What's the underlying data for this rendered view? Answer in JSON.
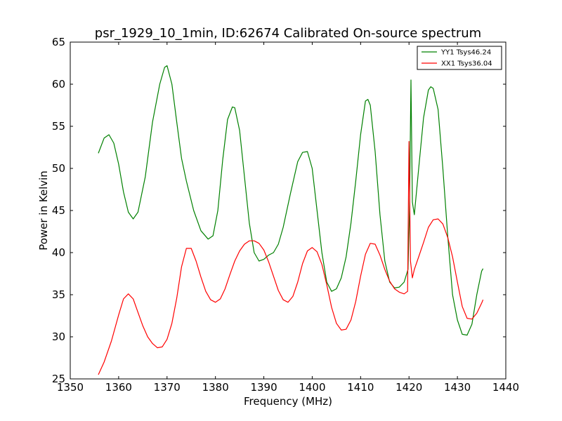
{
  "chart_data": {
    "type": "line",
    "title": "psr_1929_10_1min, ID:62674 Calibrated On-source spectrum",
    "xlabel": "Frequency (MHz)",
    "ylabel": "Power in Kelvin",
    "xlim": [
      1350,
      1440
    ],
    "ylim": [
      25,
      65
    ],
    "xticks": [
      1350,
      1360,
      1370,
      1380,
      1390,
      1400,
      1410,
      1420,
      1430,
      1440
    ],
    "yticks": [
      25,
      30,
      35,
      40,
      45,
      50,
      55,
      60,
      65
    ],
    "grid": false,
    "legend_position": "top-right",
    "series": [
      {
        "name": "YY1 Tsys46.24",
        "color": "#008000",
        "x": [
          1355.8,
          1357.0,
          1358.0,
          1359.0,
          1360.0,
          1361.0,
          1362.0,
          1363.0,
          1364.0,
          1365.5,
          1367.0,
          1368.5,
          1369.5,
          1370.0,
          1371.0,
          1372.0,
          1373.0,
          1374.0,
          1375.5,
          1377.0,
          1378.5,
          1379.5,
          1380.5,
          1381.5,
          1382.5,
          1383.5,
          1384.0,
          1385.0,
          1386.0,
          1387.0,
          1388.0,
          1389.0,
          1390.0,
          1391.0,
          1392.0,
          1393.0,
          1394.0,
          1395.5,
          1397.0,
          1398.0,
          1399.0,
          1400.0,
          1401.0,
          1402.0,
          1403.0,
          1404.0,
          1405.0,
          1406.0,
          1407.0,
          1408.0,
          1409.0,
          1410.0,
          1411.0,
          1411.5,
          1412.0,
          1413.0,
          1414.0,
          1415.0,
          1416.0,
          1417.0,
          1418.0,
          1419.0,
          1419.8,
          1420.1,
          1420.4,
          1420.7,
          1421.1,
          1422.0,
          1423.0,
          1424.0,
          1424.5,
          1425.0,
          1426.0,
          1427.0,
          1428.0,
          1429.0,
          1430.0,
          1431.0,
          1432.0,
          1433.0,
          1434.0,
          1435.0,
          1435.3
        ],
        "y": [
          51.8,
          53.6,
          54.0,
          53.0,
          50.5,
          47.2,
          44.8,
          44.0,
          44.8,
          49.0,
          55.5,
          60.0,
          62.0,
          62.2,
          60.0,
          55.5,
          51.2,
          48.5,
          45.0,
          42.6,
          41.6,
          42.0,
          45.0,
          51.0,
          55.8,
          57.3,
          57.2,
          54.5,
          49.0,
          43.5,
          40.0,
          39.0,
          39.2,
          39.7,
          40.0,
          41.0,
          43.0,
          47.0,
          50.8,
          51.9,
          52.0,
          50.0,
          45.0,
          40.0,
          36.5,
          35.4,
          35.7,
          37.0,
          39.5,
          43.5,
          48.5,
          54.0,
          58.0,
          58.2,
          57.5,
          52.0,
          44.5,
          39.0,
          36.5,
          35.8,
          35.9,
          36.5,
          38.0,
          45.0,
          60.5,
          46.0,
          44.5,
          50.0,
          56.0,
          59.3,
          59.7,
          59.5,
          57.0,
          50.0,
          42.0,
          35.0,
          32.0,
          30.3,
          30.2,
          31.5,
          35.0,
          37.8,
          38.1
        ]
      },
      {
        "name": "XX1 Tsys36.04",
        "color": "#ff0000",
        "x": [
          1355.8,
          1357.0,
          1358.5,
          1360.0,
          1361.0,
          1362.0,
          1363.0,
          1364.0,
          1365.0,
          1366.0,
          1367.0,
          1368.0,
          1369.0,
          1370.0,
          1371.0,
          1372.0,
          1373.0,
          1374.0,
          1375.0,
          1376.0,
          1377.0,
          1378.0,
          1379.0,
          1380.0,
          1381.0,
          1382.0,
          1383.0,
          1384.0,
          1385.0,
          1386.0,
          1387.0,
          1388.0,
          1389.0,
          1390.0,
          1391.0,
          1392.0,
          1393.0,
          1394.0,
          1395.0,
          1396.0,
          1397.0,
          1398.0,
          1399.0,
          1400.0,
          1401.0,
          1402.0,
          1403.0,
          1404.0,
          1405.0,
          1406.0,
          1407.0,
          1408.0,
          1409.0,
          1410.0,
          1411.0,
          1412.0,
          1413.0,
          1414.0,
          1415.0,
          1416.0,
          1417.0,
          1418.0,
          1419.0,
          1419.7,
          1420.0,
          1420.3,
          1420.7,
          1421.1,
          1422.0,
          1423.0,
          1424.0,
          1425.0,
          1426.0,
          1427.0,
          1428.0,
          1429.0,
          1430.0,
          1431.0,
          1432.0,
          1433.0,
          1434.0,
          1435.0,
          1435.3
        ],
        "y": [
          25.5,
          27.0,
          29.5,
          32.6,
          34.5,
          35.1,
          34.5,
          32.9,
          31.3,
          30.0,
          29.2,
          28.7,
          28.8,
          29.7,
          31.6,
          34.6,
          38.3,
          40.5,
          40.5,
          39.0,
          37.1,
          35.4,
          34.4,
          34.1,
          34.5,
          35.7,
          37.4,
          39.0,
          40.2,
          41.0,
          41.4,
          41.4,
          41.1,
          40.3,
          38.9,
          37.2,
          35.5,
          34.4,
          34.1,
          34.8,
          36.5,
          38.7,
          40.2,
          40.6,
          40.1,
          38.6,
          36.2,
          33.5,
          31.6,
          30.8,
          30.9,
          32.0,
          34.2,
          37.2,
          39.8,
          41.1,
          41.0,
          39.7,
          38.0,
          36.6,
          35.7,
          35.3,
          35.1,
          35.4,
          53.2,
          39.0,
          37.0,
          38.0,
          39.5,
          41.2,
          43.0,
          43.9,
          44.0,
          43.4,
          41.8,
          39.5,
          36.5,
          33.6,
          32.2,
          32.1,
          32.8,
          34.0,
          34.4
        ]
      }
    ]
  }
}
